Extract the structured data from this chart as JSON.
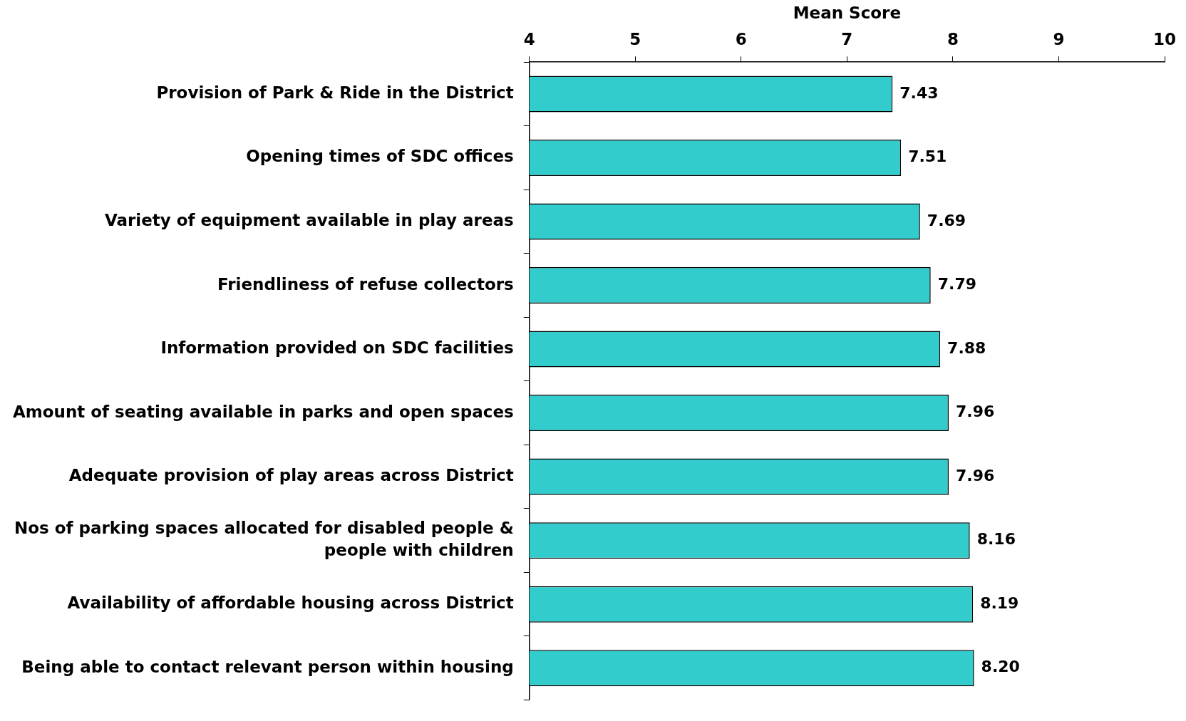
{
  "chart_data": {
    "type": "bar",
    "orientation": "horizontal",
    "xlabel": "Mean Score",
    "categories": [
      "Provision of Park & Ride in the District",
      "Opening times of SDC offices",
      "Variety of equipment available in play areas",
      "Friendliness of refuse collectors",
      "Information provided on SDC facilities",
      "Amount of seating available in parks and open spaces",
      "Adequate provision of play areas across District",
      "Nos of parking spaces allocated for disabled people & people with children",
      "Availability of affordable housing across District",
      "Being able to contact relevant person within housing"
    ],
    "values": [
      7.43,
      7.51,
      7.69,
      7.79,
      7.88,
      7.96,
      7.96,
      8.16,
      8.19,
      8.2
    ],
    "value_labels": [
      "7.43",
      "7.51",
      "7.69",
      "7.79",
      "7.88",
      "7.96",
      "7.96",
      "8.16",
      "8.19",
      "8.20"
    ],
    "color": "#33cccc",
    "xlim": [
      4,
      10
    ],
    "xticks": [
      4,
      5,
      6,
      7,
      8,
      9,
      10
    ],
    "grid": false,
    "legend": false
  }
}
